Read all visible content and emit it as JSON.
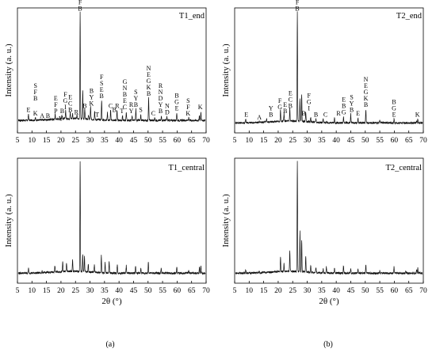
{
  "chart_data": [
    {
      "type": "line",
      "title": "T1_end",
      "ylabel": "Intensity (a. u.)",
      "xlabel": "",
      "xlim": [
        5,
        70
      ],
      "xticks": [
        5,
        10,
        15,
        20,
        25,
        30,
        35,
        40,
        45,
        50,
        55,
        60,
        65,
        70
      ],
      "ylim": [
        0,
        100
      ],
      "grid": false,
      "baseline": 10,
      "peaks": [
        [
          8.8,
          15
        ],
        [
          11.2,
          12
        ],
        [
          13.5,
          10
        ],
        [
          18,
          14
        ],
        [
          20.3,
          13
        ],
        [
          21.6,
          17
        ],
        [
          23.2,
          15
        ],
        [
          24,
          14
        ],
        [
          25.5,
          13
        ],
        [
          26.6,
          96
        ],
        [
          27.5,
          32
        ],
        [
          28.2,
          18
        ],
        [
          29.5,
          13
        ],
        [
          30.2,
          20
        ],
        [
          31.6,
          17
        ],
        [
          34,
          26
        ],
        [
          36,
          16
        ],
        [
          37.1,
          18
        ],
        [
          39.3,
          18
        ],
        [
          41.2,
          14
        ],
        [
          42.5,
          17
        ],
        [
          44.5,
          14
        ],
        [
          45.8,
          19
        ],
        [
          47.5,
          14
        ],
        [
          50.2,
          28
        ],
        [
          52.3,
          12
        ],
        [
          54.6,
          14
        ],
        [
          56.5,
          13
        ],
        [
          59.9,
          16
        ],
        [
          64,
          12
        ],
        [
          67.7,
          14
        ],
        [
          68.2,
          17
        ]
      ],
      "annotations": [
        {
          "x": 8.8,
          "y": 15,
          "text": "E"
        },
        {
          "x": 11.2,
          "y": 12,
          "text": "K"
        },
        {
          "x": 11.2,
          "y": 24,
          "text": "SFB"
        },
        {
          "x": 13.5,
          "y": 10,
          "text": "A"
        },
        {
          "x": 15.5,
          "y": 10,
          "text": "B"
        },
        {
          "x": 18.2,
          "y": 14,
          "text": "EFP"
        },
        {
          "x": 20,
          "y": 8,
          "text": "Y"
        },
        {
          "x": 20.4,
          "y": 14,
          "text": "B"
        },
        {
          "x": 21.5,
          "y": 17,
          "text": "FGI"
        },
        {
          "x": 23.2,
          "y": 15,
          "text": "ECB"
        },
        {
          "x": 25.3,
          "y": 13,
          "text": "R"
        },
        {
          "x": 26.6,
          "y": 96,
          "text": "SFB"
        },
        {
          "x": 28.2,
          "y": 18,
          "text": "B"
        },
        {
          "x": 30.5,
          "y": 20,
          "text": "BYK"
        },
        {
          "x": 32.5,
          "y": 11,
          "text": "T"
        },
        {
          "x": 34,
          "y": 26,
          "text": "FSEB"
        },
        {
          "x": 37.1,
          "y": 18,
          "text": "C"
        },
        {
          "x": 38.4,
          "y": 15,
          "text": "B"
        },
        {
          "x": 39.4,
          "y": 18,
          "text": "R"
        },
        {
          "x": 41,
          "y": 14,
          "text": "T"
        },
        {
          "x": 42,
          "y": 17,
          "text": "GNBEC"
        },
        {
          "x": 44.2,
          "y": 14,
          "text": "RY"
        },
        {
          "x": 45.8,
          "y": 19,
          "text": "SYB"
        },
        {
          "x": 47.5,
          "y": 15,
          "text": "S"
        },
        {
          "x": 50.2,
          "y": 28,
          "text": "NEGKB"
        },
        {
          "x": 51.8,
          "y": 12,
          "text": "C"
        },
        {
          "x": 54.3,
          "y": 14,
          "text": "RNDYB"
        },
        {
          "x": 56.6,
          "y": 13,
          "text": "ND"
        },
        {
          "x": 59.9,
          "y": 16,
          "text": "BGE"
        },
        {
          "x": 63.8,
          "y": 12,
          "text": "SFK"
        },
        {
          "x": 68,
          "y": 17,
          "text": "K"
        }
      ]
    },
    {
      "type": "line",
      "title": "T2_end",
      "ylabel": "Intensity (a. u.)",
      "xlabel": "",
      "xlim": [
        5,
        70
      ],
      "xticks": [
        5,
        10,
        15,
        20,
        25,
        30,
        35,
        40,
        45,
        50,
        55,
        60,
        65,
        70
      ],
      "ylim": [
        0,
        100
      ],
      "grid": false,
      "baseline": 8,
      "peaks": [
        [
          8.8,
          11
        ],
        [
          13.5,
          9
        ],
        [
          16,
          11
        ],
        [
          20.8,
          17
        ],
        [
          22,
          14
        ],
        [
          24,
          18
        ],
        [
          26.6,
          96
        ],
        [
          27.5,
          26
        ],
        [
          28.1,
          29
        ],
        [
          29.5,
          16
        ],
        [
          31.2,
          12
        ],
        [
          33,
          11
        ],
        [
          35.5,
          11
        ],
        [
          39.4,
          12
        ],
        [
          42.5,
          13
        ],
        [
          45,
          15
        ],
        [
          47.5,
          12
        ],
        [
          50.2,
          19
        ],
        [
          55,
          10
        ],
        [
          59.9,
          11
        ],
        [
          67.7,
          10
        ],
        [
          68.1,
          11
        ]
      ],
      "annotations": [
        {
          "x": 9,
          "y": 11,
          "text": "E"
        },
        {
          "x": 13.5,
          "y": 9,
          "text": "A"
        },
        {
          "x": 17.5,
          "y": 11,
          "text": "YB"
        },
        {
          "x": 20.6,
          "y": 17,
          "text": "FG"
        },
        {
          "x": 22.4,
          "y": 14,
          "text": "EB"
        },
        {
          "x": 24.2,
          "y": 18,
          "text": "ECB"
        },
        {
          "x": 26.6,
          "y": 96,
          "text": "SFB"
        },
        {
          "x": 28.8,
          "y": 12,
          "text": "B"
        },
        {
          "x": 30.6,
          "y": 16,
          "text": "FGI"
        },
        {
          "x": 33,
          "y": 11,
          "text": "B"
        },
        {
          "x": 36.3,
          "y": 11,
          "text": "C"
        },
        {
          "x": 40.8,
          "y": 12,
          "text": "R"
        },
        {
          "x": 42.6,
          "y": 13,
          "text": "EBG"
        },
        {
          "x": 45.3,
          "y": 15,
          "text": "SYB"
        },
        {
          "x": 47.5,
          "y": 12,
          "text": "E"
        },
        {
          "x": 50.2,
          "y": 19,
          "text": "NEGKB"
        },
        {
          "x": 59.9,
          "y": 11,
          "text": "BGE"
        },
        {
          "x": 68,
          "y": 11,
          "text": "K"
        }
      ]
    },
    {
      "type": "line",
      "title": "T1_central",
      "ylabel": "Intensity (a. u.)",
      "xlabel": "2θ (°)",
      "xlim": [
        5,
        70
      ],
      "xticks": [
        5,
        10,
        15,
        20,
        25,
        30,
        35,
        40,
        45,
        50,
        55,
        60,
        65,
        70
      ],
      "ylim": [
        0,
        100
      ],
      "grid": false,
      "baseline": 8,
      "peaks": [
        [
          8.8,
          12
        ],
        [
          13.5,
          9
        ],
        [
          17.9,
          13
        ],
        [
          20.6,
          16
        ],
        [
          21.9,
          15
        ],
        [
          24,
          17
        ],
        [
          26.6,
          96
        ],
        [
          27.5,
          22
        ],
        [
          28.1,
          20
        ],
        [
          29.4,
          14
        ],
        [
          31.5,
          14
        ],
        [
          33.9,
          22
        ],
        [
          35.2,
          16
        ],
        [
          36.6,
          17
        ],
        [
          39.4,
          15
        ],
        [
          42.5,
          14
        ],
        [
          45.7,
          14
        ],
        [
          47.5,
          12
        ],
        [
          50.1,
          17
        ],
        [
          54.5,
          12
        ],
        [
          59.9,
          13
        ],
        [
          64,
          10
        ],
        [
          67.7,
          13
        ],
        [
          68.2,
          14
        ]
      ],
      "annotations": []
    },
    {
      "type": "line",
      "title": "T2_central",
      "ylabel": "Intensity (a. u.)",
      "xlabel": "2θ (°)",
      "xlim": [
        5,
        70
      ],
      "xticks": [
        5,
        10,
        15,
        20,
        25,
        30,
        35,
        40,
        45,
        50,
        55,
        60,
        65,
        70
      ],
      "ylim": [
        0,
        100
      ],
      "grid": false,
      "baseline": 8,
      "peaks": [
        [
          8.8,
          11
        ],
        [
          13.5,
          9
        ],
        [
          20.8,
          20
        ],
        [
          22,
          14
        ],
        [
          24,
          24
        ],
        [
          26.6,
          96
        ],
        [
          27.5,
          40
        ],
        [
          28.1,
          34
        ],
        [
          29.5,
          20
        ],
        [
          31.2,
          13
        ],
        [
          33,
          12
        ],
        [
          35.5,
          11
        ],
        [
          36.6,
          13
        ],
        [
          39.4,
          12
        ],
        [
          42.5,
          14
        ],
        [
          45,
          12
        ],
        [
          47.5,
          11
        ],
        [
          50.2,
          15
        ],
        [
          55,
          10
        ],
        [
          59.9,
          13
        ],
        [
          64,
          10
        ],
        [
          67.7,
          11
        ],
        [
          68.1,
          12
        ]
      ],
      "annotations": []
    }
  ],
  "panel_labels": {
    "a": "(a)",
    "b": "(b)"
  }
}
